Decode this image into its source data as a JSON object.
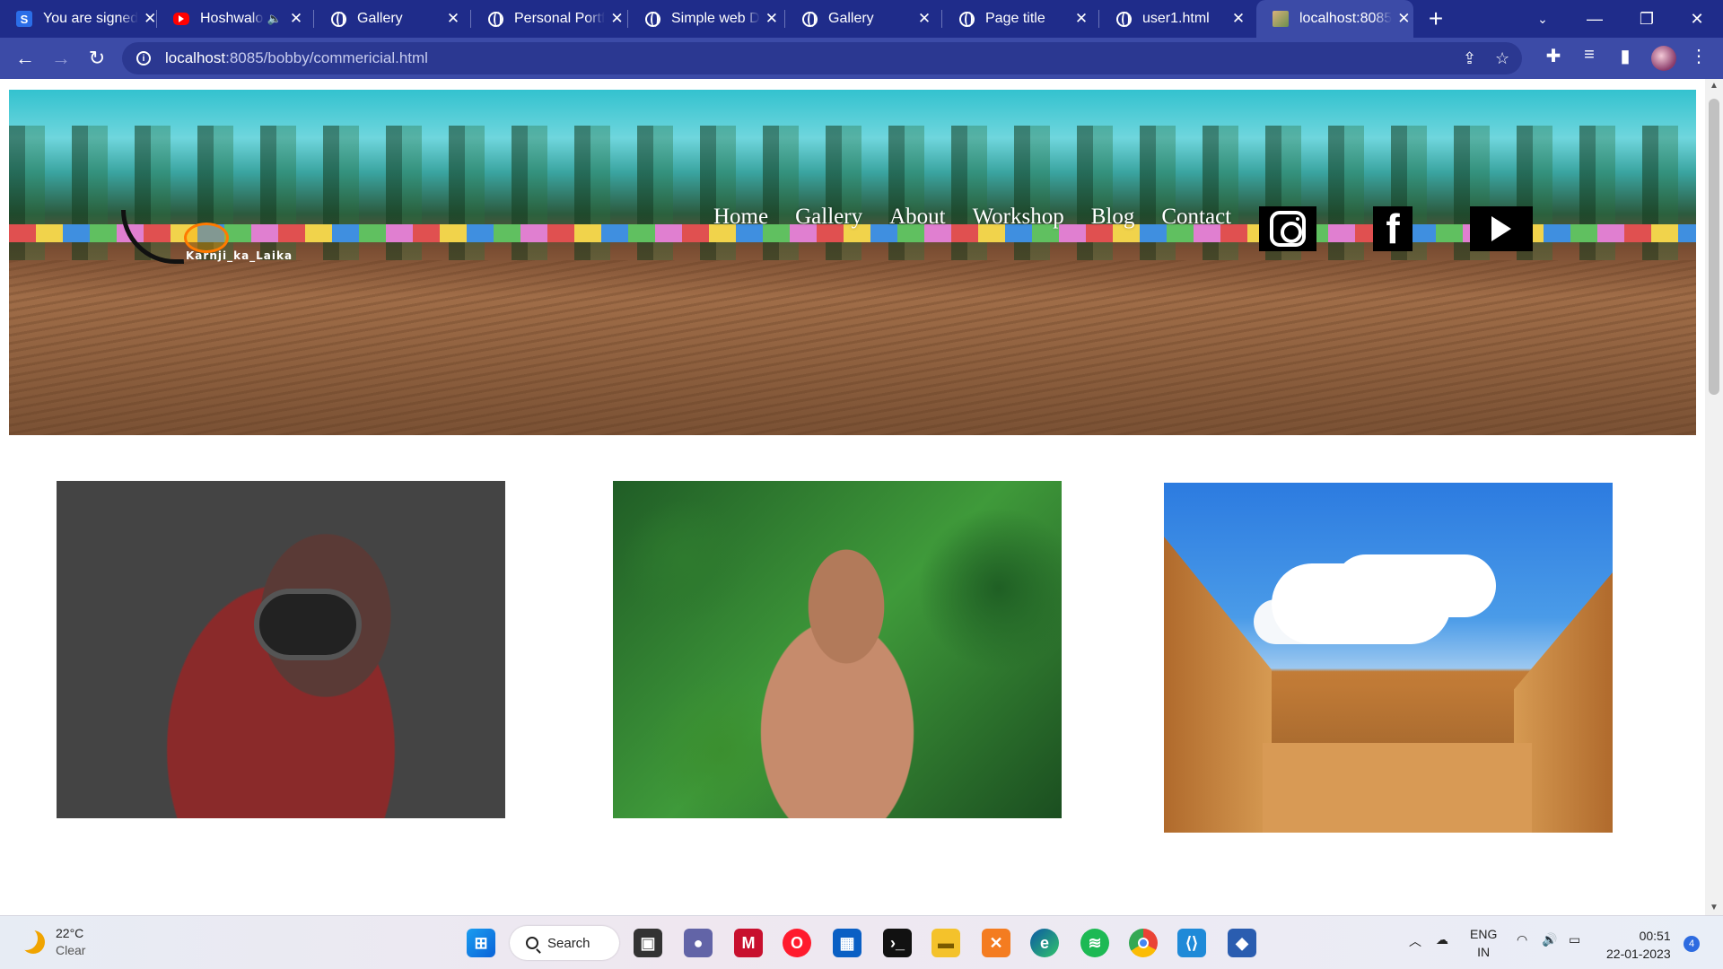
{
  "browser": {
    "tabs": [
      {
        "title": "You are signed",
        "icon": "s-app-icon",
        "color": "#2b6ee8"
      },
      {
        "title": "Hoshwalo",
        "icon": "youtube-icon",
        "color": "#ff0000"
      },
      {
        "title": "Gallery",
        "icon": "globe-icon"
      },
      {
        "title": "Personal Portf",
        "icon": "globe-icon"
      },
      {
        "title": "Simple web D",
        "icon": "globe-icon"
      },
      {
        "title": "Gallery",
        "icon": "globe-icon"
      },
      {
        "title": "Page title",
        "icon": "globe-icon"
      },
      {
        "title": "user1.html",
        "icon": "globe-icon"
      },
      {
        "title": "localhost:8085",
        "icon": "site-favicon",
        "active": true
      }
    ],
    "url_host": "localhost",
    "url_rest": ":8085/bobby/commericial.html",
    "new_tab": "+"
  },
  "site": {
    "logo_text": "Karnji_ka_Laika",
    "nav": [
      "Home",
      "Gallery",
      "About",
      "Workshop",
      "Blog",
      "Contact"
    ],
    "social": [
      "instagram-icon",
      "facebook-icon",
      "youtube-play-icon"
    ],
    "facebook_glyph": "f"
  },
  "gallery": [
    {
      "subject": "photographer-with-camera"
    },
    {
      "subject": "elderly-woman-in-greenery"
    },
    {
      "subject": "palace-courtyard-blue-sky"
    }
  ],
  "taskbar": {
    "temperature": "22°C",
    "condition": "Clear",
    "search_label": "Search",
    "lang_line1": "ENG",
    "lang_line2": "IN",
    "time": "00:51",
    "date": "22-01-2023",
    "notification_count": "4"
  },
  "colors": {
    "tabbar": "#1f2c8a",
    "toolbar": "#3c4ba7",
    "accent": "#2d6be0"
  }
}
